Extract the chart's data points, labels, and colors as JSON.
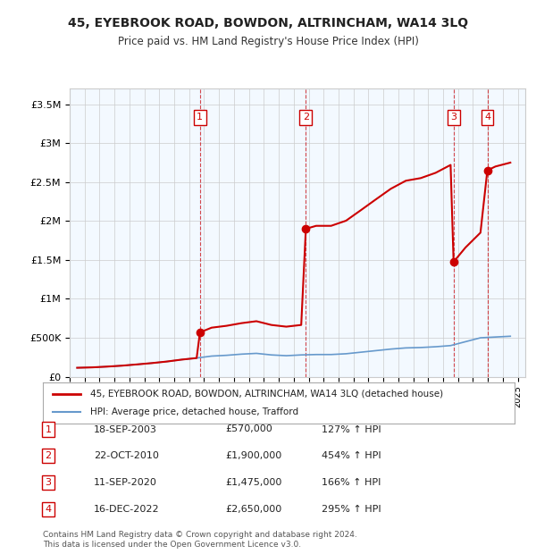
{
  "title": "45, EYEBROOK ROAD, BOWDON, ALTRINCHAM, WA14 3LQ",
  "subtitle": "Price paid vs. HM Land Registry's House Price Index (HPI)",
  "footer": "Contains HM Land Registry data © Crown copyright and database right 2024.\nThis data is licensed under the Open Government Licence v3.0.",
  "legend_property": "45, EYEBROOK ROAD, BOWDON, ALTRINCHAM, WA14 3LQ (detached house)",
  "legend_hpi": "HPI: Average price, detached house, Trafford",
  "sales": [
    {
      "num": 1,
      "date_str": "18-SEP-2003",
      "date_dec": 2003.72,
      "price": 570000,
      "pct": "127%"
    },
    {
      "num": 2,
      "date_str": "22-OCT-2010",
      "date_dec": 2010.81,
      "price": 1900000,
      "pct": "454%"
    },
    {
      "num": 3,
      "date_str": "11-SEP-2020",
      "date_dec": 2020.7,
      "price": 1475000,
      "pct": "166%"
    },
    {
      "num": 4,
      "date_str": "16-DEC-2022",
      "date_dec": 2022.96,
      "price": 2650000,
      "pct": "295%"
    }
  ],
  "ylim": [
    0,
    3700000
  ],
  "yticks": [
    0,
    500000,
    1000000,
    1500000,
    2000000,
    2500000,
    3000000,
    3500000
  ],
  "ytick_labels": [
    "£0",
    "£500K",
    "£1M",
    "£1.5M",
    "£2M",
    "£2.5M",
    "£3M",
    "£3.5M"
  ],
  "xlim_start": 1995.0,
  "xlim_end": 2025.5,
  "background_color": "#ffffff",
  "grid_color": "#cccccc",
  "property_line_color": "#cc0000",
  "hpi_line_color": "#6699cc",
  "sale_marker_color": "#cc0000",
  "dashed_line_color": "#cc0000",
  "shade_color": "#ddeeff",
  "shade_alpha": 0.35,
  "hpi_data": {
    "years": [
      1995.5,
      1996.5,
      1997.5,
      1998.5,
      1999.5,
      2000.5,
      2001.5,
      2002.5,
      2003.5,
      2004.5,
      2005.5,
      2006.5,
      2007.5,
      2008.5,
      2009.5,
      2010.5,
      2011.5,
      2012.5,
      2013.5,
      2014.5,
      2015.5,
      2016.5,
      2017.5,
      2018.5,
      2019.5,
      2020.5,
      2021.5,
      2022.5,
      2023.5,
      2024.5
    ],
    "values": [
      115000,
      120000,
      130000,
      142000,
      158000,
      175000,
      195000,
      220000,
      240000,
      265000,
      275000,
      290000,
      300000,
      280000,
      270000,
      280000,
      285000,
      285000,
      295000,
      315000,
      335000,
      355000,
      370000,
      375000,
      385000,
      400000,
      450000,
      500000,
      510000,
      520000
    ]
  },
  "property_hpi_data": {
    "years": [
      1995.5,
      1996.5,
      1997.5,
      1998.5,
      1999.5,
      2000.5,
      2001.5,
      2002.5,
      2003.5,
      2003.72,
      2004.5,
      2005.5,
      2006.5,
      2007.5,
      2008.5,
      2009.5,
      2010.5,
      2010.81,
      2011.5,
      2012.5,
      2013.5,
      2014.5,
      2015.5,
      2016.5,
      2017.5,
      2018.5,
      2019.5,
      2020.5,
      2020.7,
      2021.5,
      2022.5,
      2022.96,
      2023.5,
      2024.5
    ],
    "values": [
      115000,
      120000,
      130000,
      142000,
      158000,
      175000,
      195000,
      220000,
      240000,
      570000,
      630000,
      654000,
      688000,
      713000,
      665000,
      643000,
      665000,
      1900000,
      1938000,
      1938000,
      2004000,
      2140000,
      2278000,
      2414000,
      2517000,
      2551000,
      2619000,
      2720000,
      1475000,
      1660000,
      1850000,
      2650000,
      2700000,
      2750000
    ]
  }
}
